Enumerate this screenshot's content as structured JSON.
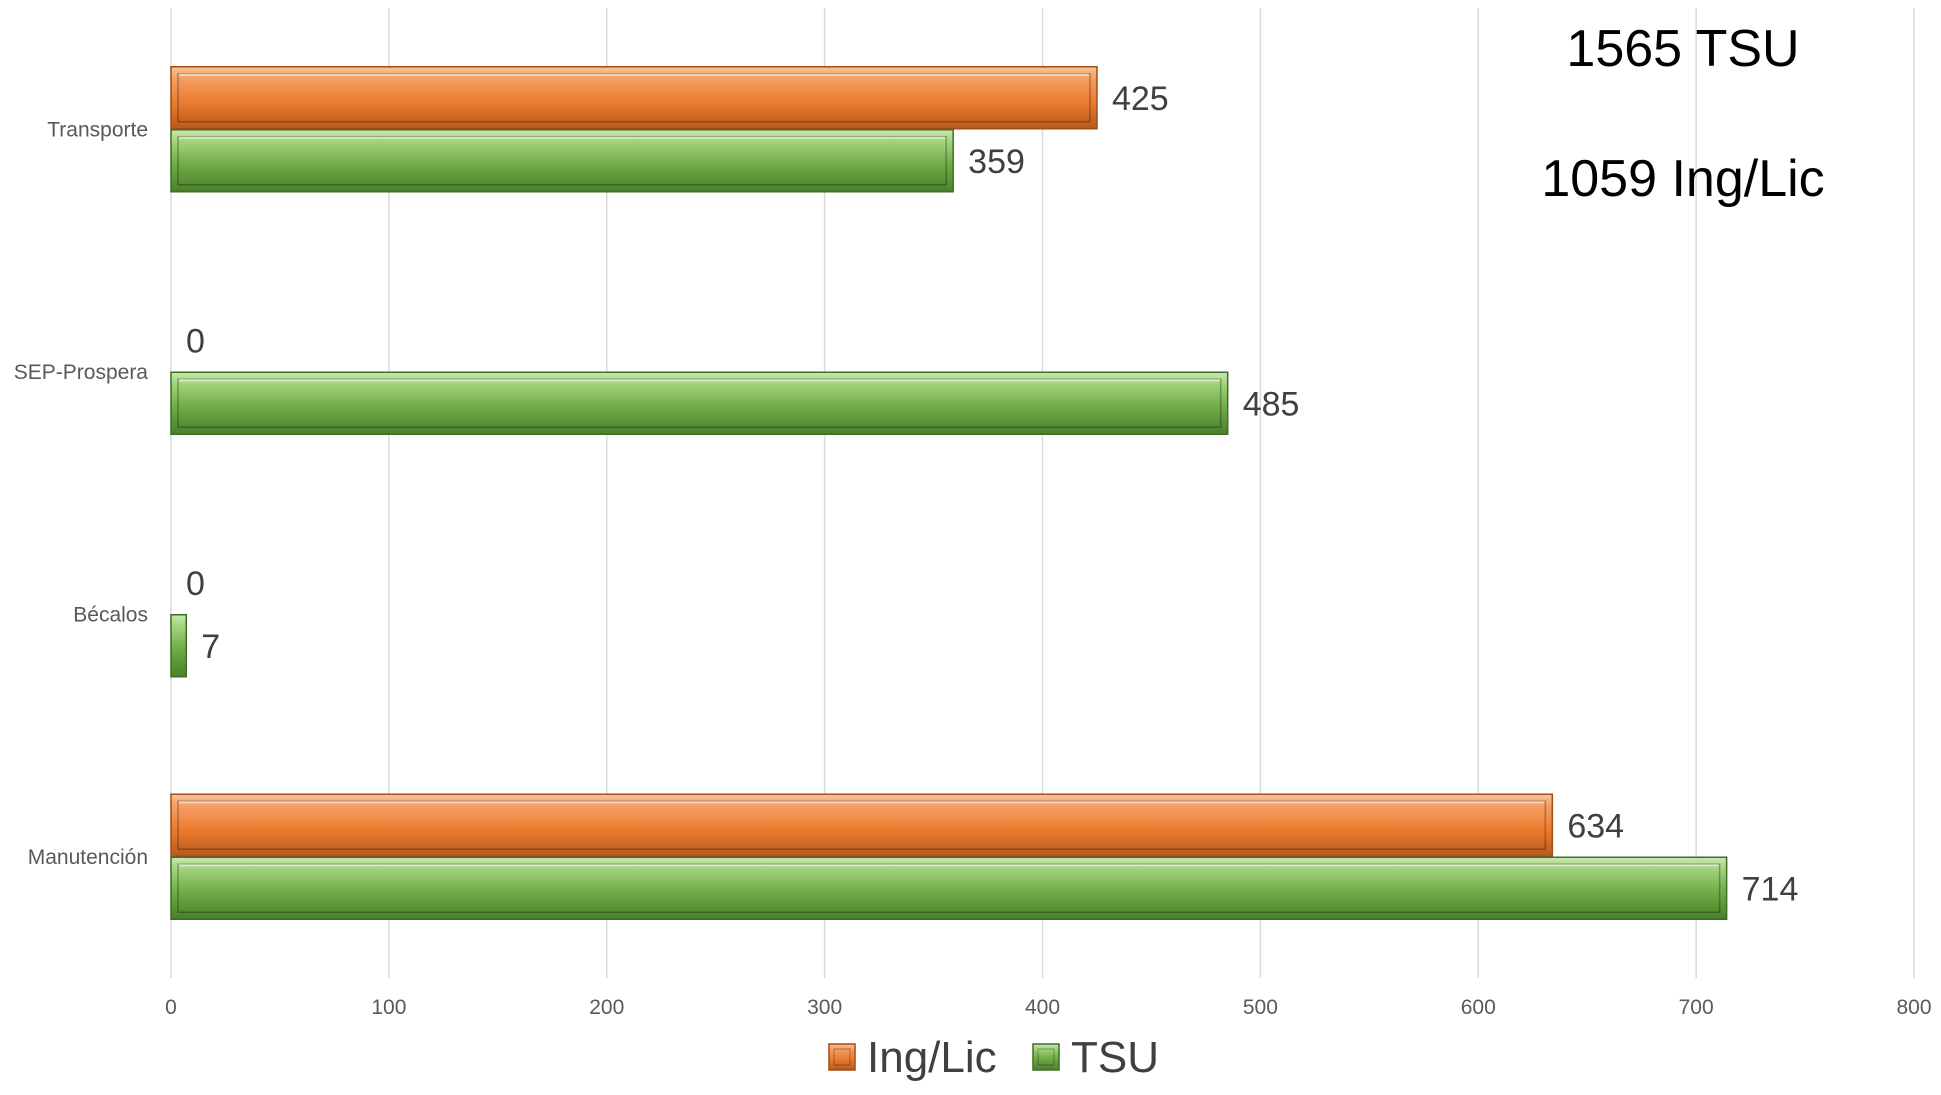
{
  "chart_data": {
    "type": "bar",
    "orientation": "horizontal",
    "categories": [
      "Transporte",
      "SEP-Prospera",
      "Bécalos",
      "Manutención"
    ],
    "series": [
      {
        "name": "Ing/Lic",
        "values": [
          425,
          0,
          0,
          634
        ],
        "color": "#ed7d31"
      },
      {
        "name": "TSU",
        "values": [
          359,
          485,
          7,
          714
        ],
        "color": "#70ad47"
      }
    ],
    "xlim": [
      0,
      800
    ],
    "xticks": [
      "0",
      "100",
      "200",
      "300",
      "400",
      "500",
      "600",
      "700",
      "800"
    ],
    "grid": true,
    "legend_position": "bottom",
    "annotations": [
      "1565 TSU",
      "1059 Ing/Lic"
    ],
    "title": "",
    "xlabel": "",
    "ylabel": ""
  }
}
